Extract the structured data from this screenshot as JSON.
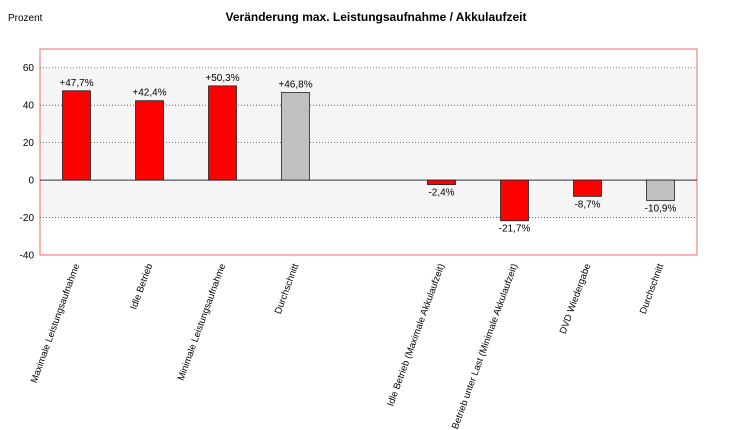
{
  "chart_data": {
    "type": "bar",
    "title": "Veränderung max. Leistungsaufnahme / Akkulaufzeit",
    "ylabel": "Prozent",
    "xlabel": "",
    "ylim": [
      -40,
      70
    ],
    "yticks": [
      -40,
      -20,
      0,
      20,
      40,
      60
    ],
    "grid": true,
    "legend": "none",
    "bars": [
      {
        "category": "Maximale Leistungsaufnahme",
        "value": 47.7,
        "label": "+47,7%",
        "color": "#ff0000",
        "slot": 0
      },
      {
        "category": "Idle Betrieb",
        "value": 42.4,
        "label": "+42,4%",
        "color": "#ff0000",
        "slot": 1
      },
      {
        "category": "Minimale Leistungsaufnahme",
        "value": 50.3,
        "label": "+50,3%",
        "color": "#ff0000",
        "slot": 2
      },
      {
        "category": "Durchschnitt",
        "value": 46.8,
        "label": "+46,8%",
        "color": "#c0c0c0",
        "slot": 3
      },
      {
        "category": "Idle Betrieb (Maximale Akkulaufzeit)",
        "value": -2.4,
        "label": "-2,4%",
        "color": "#ff0000",
        "slot": 5
      },
      {
        "category": "Betrieb unter Last (Minimale Akkulaufzeit)",
        "value": -21.7,
        "label": "-21,7%",
        "color": "#ff0000",
        "slot": 6
      },
      {
        "category": "DVD Wiedergabe",
        "value": -8.7,
        "label": "-8,7%",
        "color": "#ff0000",
        "slot": 7
      },
      {
        "category": "Durchschnitt",
        "value": -10.9,
        "label": "-10,9%",
        "color": "#c0c0c0",
        "slot": 8
      }
    ]
  }
}
